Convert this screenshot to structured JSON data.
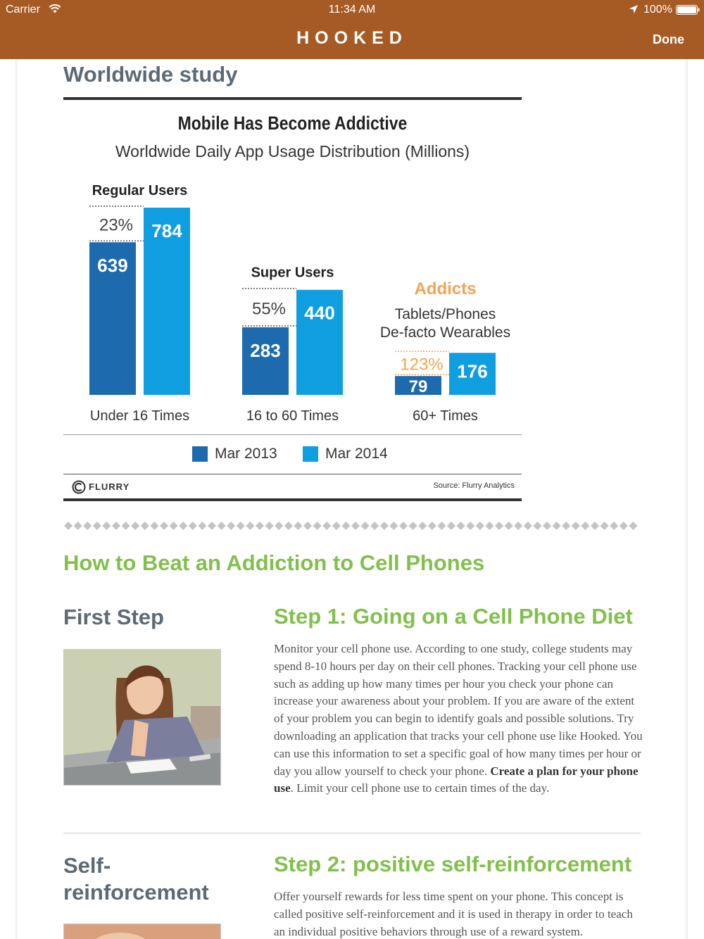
{
  "status_bar": {
    "carrier": "Carrier",
    "time": "11:34 AM",
    "battery": "100%"
  },
  "nav": {
    "title": "HOOKED",
    "done_label": "Done"
  },
  "article": {
    "section_title": "Worldwide study",
    "how_title": "How to Beat an Addiction to Cell Phones",
    "steps": [
      {
        "left_heading": "First Step",
        "heading": "Step 1: Going on a Cell Phone Diet",
        "body_before_bold": "Monitor your cell phone use. According to one study, college students may spend 8-10 hours per day on their cell phones. Tracking your cell phone use such as adding up how many times per hour you check your phone can increase your awareness about your problem. If you are aware of the extent of your problem you can begin to identify goals and possible solutions. Try downloading an application that tracks your cell phone use like Hooked. You can use this information to set a specific goal of how many times per hour or day you allow yourself to check your phone. ",
        "body_bold": "Create a plan for your phone use",
        "body_after_bold": ". Limit your cell phone use to certain times of the day."
      },
      {
        "left_heading": "Self-reinforcement",
        "heading": "Step 2: positive self-reinforcement",
        "body": "Offer yourself rewards for less time spent on your phone. This concept is called positive self-reinforcement and it is used in therapy in order to teach an individual positive behaviors through use of a reward system."
      }
    ]
  },
  "chart_data": {
    "type": "bar",
    "title": "Mobile Has Become Addictive",
    "subtitle": "Worldwide Daily App Usage Distribution (Millions)",
    "groups": [
      {
        "name": "Regular Users",
        "category": "Under 16 Times",
        "growth": "23%"
      },
      {
        "name": "Super Users",
        "category": "16 to 60 Times",
        "growth": "55%"
      },
      {
        "name": "Addicts",
        "category": "60+ Times",
        "growth": "123%",
        "note_lines": [
          "Tablets/Phones",
          "De-facto Wearables"
        ]
      }
    ],
    "categories": [
      "Under 16 Times",
      "16 to 60 Times",
      "60+ Times"
    ],
    "series": [
      {
        "name": "Mar 2013",
        "values": [
          639,
          283,
          79
        ],
        "color": "#1d6aae"
      },
      {
        "name": "Mar 2014",
        "values": [
          784,
          440,
          176
        ],
        "color": "#0f9fe0"
      }
    ],
    "highlight_color": "#f4a351",
    "logo_text": "FLURRY",
    "source": "Source: Flurry Analytics"
  },
  "colors": {
    "nav_bg": "#a75b24",
    "heading_gray": "#5d6a75",
    "heading_green": "#82c04d"
  }
}
